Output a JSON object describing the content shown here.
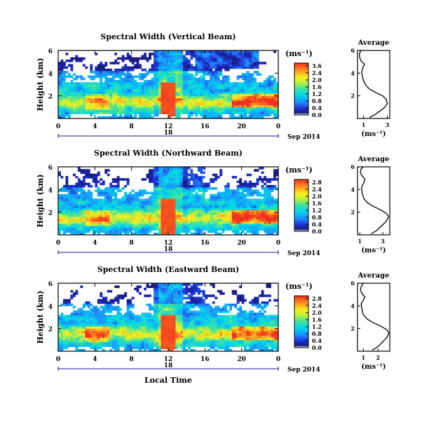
{
  "chart_data": [
    {
      "type": "heatmap",
      "title": "Spectral Width (Vertical Beam)",
      "ylabel": "Height (km)",
      "ylim": [
        0,
        6
      ],
      "yticks": [
        "2",
        "4",
        "6"
      ],
      "xlim": [
        0,
        24
      ],
      "xticks": [
        "0",
        "4",
        "8",
        "12",
        "16",
        "20",
        "0"
      ],
      "date_marker": "18",
      "date_label": "Sep 2014",
      "colorbar": {
        "unit": "(ms⁻¹)",
        "range": [
          0,
          3.6
        ],
        "ticks": [
          "3.6",
          "2.4",
          "2.0",
          "1.6",
          "1.2",
          "0.8",
          "0.4",
          "0.0"
        ]
      },
      "average": {
        "title": "Average",
        "xlabel": "(ms⁻¹)",
        "xticks": [
          "1",
          "3"
        ],
        "xlim": [
          0.5,
          3.2
        ],
        "ylim": [
          0,
          6
        ],
        "yticks": [
          "2",
          "4",
          "6"
        ],
        "profile": [
          [
            1.5,
            0.1
          ],
          [
            1.9,
            0.3
          ],
          [
            2.3,
            0.6
          ],
          [
            2.7,
            0.9
          ],
          [
            3.0,
            1.3
          ],
          [
            2.9,
            1.7
          ],
          [
            2.6,
            2.0
          ],
          [
            2.0,
            2.3
          ],
          [
            1.5,
            2.6
          ],
          [
            1.15,
            3.0
          ],
          [
            0.95,
            3.5
          ],
          [
            0.85,
            4.1
          ],
          [
            0.95,
            4.5
          ],
          [
            1.1,
            4.8
          ],
          [
            0.85,
            5.0
          ],
          [
            0.7,
            5.3
          ],
          [
            0.65,
            5.7
          ],
          [
            0.8,
            6.0
          ]
        ]
      }
    },
    {
      "type": "heatmap",
      "title": "Spectral Width (Northward Beam)",
      "ylabel": "Height (km)",
      "ylim": [
        0,
        6
      ],
      "yticks": [
        "2",
        "4",
        "6"
      ],
      "xlim": [
        0,
        24
      ],
      "xticks": [
        "0",
        "4",
        "8",
        "12",
        "16",
        "20",
        "0"
      ],
      "date_marker": "18",
      "date_label": "Sep 2014",
      "colorbar": {
        "unit": "(ms⁻¹)",
        "range": [
          0,
          2.8
        ],
        "ticks": [
          "2.8",
          "2.4",
          "2.0",
          "1.6",
          "1.2",
          "0.8",
          "0.4",
          "0.0"
        ]
      },
      "average": {
        "title": "Average",
        "xlabel": "(ms⁻¹)",
        "xticks": [
          "1",
          "3"
        ],
        "xlim": [
          0.8,
          3.6
        ],
        "ylim": [
          0,
          6
        ],
        "yticks": [
          "2",
          "4",
          "6"
        ],
        "profile": [
          [
            2.0,
            0.1
          ],
          [
            2.5,
            0.4
          ],
          [
            2.9,
            0.8
          ],
          [
            3.3,
            1.2
          ],
          [
            3.5,
            1.6
          ],
          [
            3.3,
            1.9
          ],
          [
            2.8,
            2.2
          ],
          [
            2.2,
            2.5
          ],
          [
            1.7,
            2.8
          ],
          [
            1.35,
            3.2
          ],
          [
            1.2,
            3.7
          ],
          [
            1.15,
            4.2
          ],
          [
            1.35,
            4.6
          ],
          [
            1.45,
            4.9
          ],
          [
            1.2,
            5.2
          ],
          [
            1.05,
            5.5
          ],
          [
            1.1,
            5.8
          ],
          [
            1.3,
            6.0
          ]
        ]
      }
    },
    {
      "type": "heatmap",
      "title": "Spectral Width (Eastward Beam)",
      "ylabel": "Height (km)",
      "xlabel": "Local Time",
      "ylim": [
        0,
        6
      ],
      "yticks": [
        "2",
        "4",
        "6"
      ],
      "xlim": [
        0,
        24
      ],
      "xticks": [
        "0",
        "4",
        "8",
        "12",
        "16",
        "20",
        "0"
      ],
      "date_marker": "18",
      "date_label": "Sep 2014",
      "colorbar": {
        "unit": "(ms⁻¹)",
        "range": [
          0,
          2.8
        ],
        "ticks": [
          "2.8",
          "2.4",
          "2.0",
          "1.6",
          "1.2",
          "0.8",
          "0.4",
          "0.0"
        ]
      },
      "average": {
        "title": "Average",
        "xlabel": "(ms⁻¹)",
        "xticks": [
          "1",
          "2"
        ],
        "xlim": [
          0.6,
          2.8
        ],
        "ylim": [
          0,
          6
        ],
        "yticks": [
          "2",
          "4",
          "6"
        ],
        "profile": [
          [
            1.6,
            0.1
          ],
          [
            2.0,
            0.4
          ],
          [
            2.3,
            0.8
          ],
          [
            2.6,
            1.2
          ],
          [
            2.75,
            1.6
          ],
          [
            2.6,
            1.9
          ],
          [
            2.2,
            2.2
          ],
          [
            1.7,
            2.5
          ],
          [
            1.3,
            2.8
          ],
          [
            1.0,
            3.2
          ],
          [
            0.9,
            3.7
          ],
          [
            0.85,
            4.2
          ],
          [
            1.0,
            4.5
          ],
          [
            1.1,
            4.8
          ],
          [
            0.9,
            5.1
          ],
          [
            0.8,
            5.4
          ],
          [
            0.85,
            5.7
          ],
          [
            1.0,
            6.0
          ]
        ]
      }
    }
  ]
}
